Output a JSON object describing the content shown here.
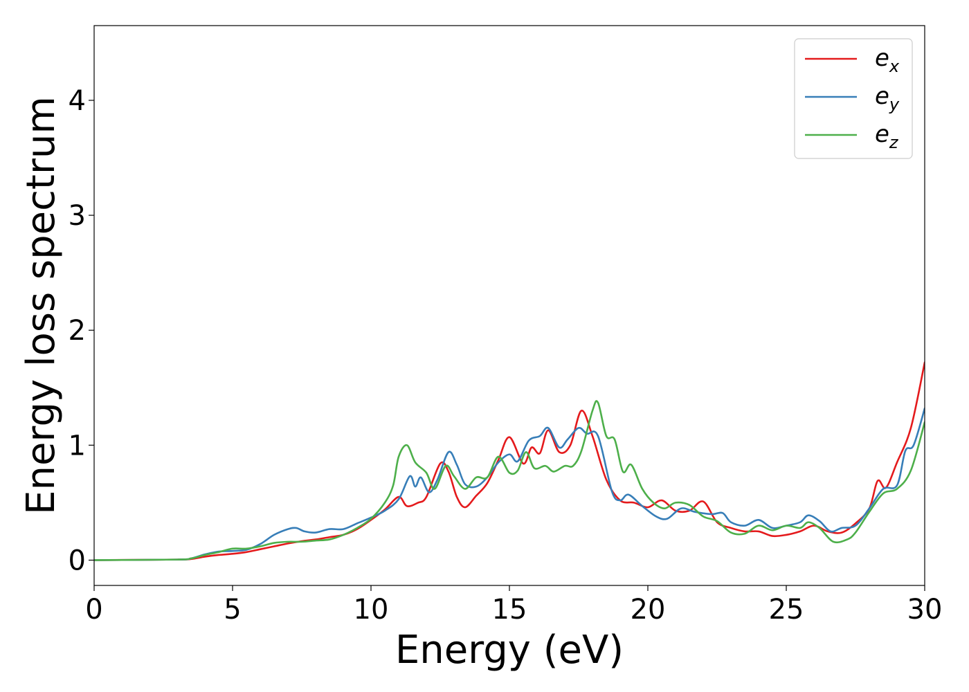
{
  "chart_data": {
    "type": "line",
    "title": "",
    "xlabel": "Energy (eV)",
    "ylabel": "Energy loss spectrum",
    "xlim": [
      0,
      30
    ],
    "ylim": [
      -0.22,
      4.65
    ],
    "xticks": [
      0,
      5,
      10,
      15,
      20,
      25,
      30
    ],
    "yticks": [
      0,
      1,
      2,
      3,
      4
    ],
    "grid": false,
    "legend_position": "top-right",
    "series": [
      {
        "name": "e_x",
        "label_base": "e",
        "label_sub": "x",
        "color": "#e41a1c",
        "points": [
          [
            0,
            0
          ],
          [
            3,
            0.005
          ],
          [
            3.5,
            0.01
          ],
          [
            4,
            0.03
          ],
          [
            4.5,
            0.045
          ],
          [
            5,
            0.055
          ],
          [
            5.5,
            0.07
          ],
          [
            6,
            0.095
          ],
          [
            6.5,
            0.12
          ],
          [
            7,
            0.145
          ],
          [
            7.5,
            0.165
          ],
          [
            8,
            0.18
          ],
          [
            8.5,
            0.2
          ],
          [
            9,
            0.22
          ],
          [
            9.5,
            0.27
          ],
          [
            10,
            0.35
          ],
          [
            10.5,
            0.44
          ],
          [
            11,
            0.55
          ],
          [
            11.3,
            0.47
          ],
          [
            11.7,
            0.5
          ],
          [
            12,
            0.55
          ],
          [
            12.5,
            0.84
          ],
          [
            12.8,
            0.77
          ],
          [
            13.1,
            0.55
          ],
          [
            13.4,
            0.46
          ],
          [
            13.8,
            0.56
          ],
          [
            14.2,
            0.67
          ],
          [
            14.6,
            0.87
          ],
          [
            15,
            1.07
          ],
          [
            15.5,
            0.84
          ],
          [
            15.8,
            0.98
          ],
          [
            16.1,
            0.93
          ],
          [
            16.4,
            1.13
          ],
          [
            16.8,
            0.94
          ],
          [
            17.2,
            1.0
          ],
          [
            17.6,
            1.3
          ],
          [
            18,
            1.08
          ],
          [
            18.5,
            0.7
          ],
          [
            19,
            0.52
          ],
          [
            19.5,
            0.5
          ],
          [
            20,
            0.46
          ],
          [
            20.5,
            0.52
          ],
          [
            21,
            0.43
          ],
          [
            21.5,
            0.43
          ],
          [
            22,
            0.51
          ],
          [
            22.5,
            0.33
          ],
          [
            23,
            0.28
          ],
          [
            23.5,
            0.25
          ],
          [
            24,
            0.25
          ],
          [
            24.5,
            0.21
          ],
          [
            25,
            0.22
          ],
          [
            25.5,
            0.25
          ],
          [
            26,
            0.3
          ],
          [
            26.5,
            0.25
          ],
          [
            27,
            0.24
          ],
          [
            27.5,
            0.32
          ],
          [
            28,
            0.45
          ],
          [
            28.3,
            0.69
          ],
          [
            28.6,
            0.63
          ],
          [
            29,
            0.85
          ],
          [
            29.5,
            1.15
          ],
          [
            30,
            1.72
          ]
        ]
      },
      {
        "name": "e_y",
        "label_base": "e",
        "label_sub": "y",
        "color": "#377eb8",
        "points": [
          [
            0,
            0
          ],
          [
            3,
            0.005
          ],
          [
            3.5,
            0.015
          ],
          [
            4,
            0.05
          ],
          [
            4.5,
            0.075
          ],
          [
            5,
            0.08
          ],
          [
            5.5,
            0.09
          ],
          [
            6,
            0.14
          ],
          [
            6.5,
            0.22
          ],
          [
            7,
            0.27
          ],
          [
            7.3,
            0.28
          ],
          [
            7.6,
            0.25
          ],
          [
            8,
            0.24
          ],
          [
            8.5,
            0.27
          ],
          [
            9,
            0.27
          ],
          [
            9.5,
            0.32
          ],
          [
            10,
            0.37
          ],
          [
            10.5,
            0.43
          ],
          [
            11,
            0.53
          ],
          [
            11.4,
            0.73
          ],
          [
            11.6,
            0.64
          ],
          [
            11.8,
            0.72
          ],
          [
            12.1,
            0.59
          ],
          [
            12.4,
            0.7
          ],
          [
            12.8,
            0.94
          ],
          [
            13.1,
            0.83
          ],
          [
            13.4,
            0.66
          ],
          [
            13.8,
            0.64
          ],
          [
            14.2,
            0.72
          ],
          [
            14.6,
            0.85
          ],
          [
            15,
            0.92
          ],
          [
            15.3,
            0.86
          ],
          [
            15.7,
            1.04
          ],
          [
            16.1,
            1.08
          ],
          [
            16.4,
            1.15
          ],
          [
            16.8,
            0.98
          ],
          [
            17.1,
            1.05
          ],
          [
            17.5,
            1.15
          ],
          [
            17.8,
            1.1
          ],
          [
            18.2,
            1.08
          ],
          [
            18.7,
            0.6
          ],
          [
            19,
            0.52
          ],
          [
            19.3,
            0.57
          ],
          [
            19.8,
            0.47
          ],
          [
            20.3,
            0.38
          ],
          [
            20.7,
            0.36
          ],
          [
            21.2,
            0.45
          ],
          [
            21.7,
            0.42
          ],
          [
            22.3,
            0.4
          ],
          [
            22.7,
            0.41
          ],
          [
            23,
            0.33
          ],
          [
            23.5,
            0.3
          ],
          [
            24,
            0.35
          ],
          [
            24.5,
            0.28
          ],
          [
            25,
            0.3
          ],
          [
            25.5,
            0.33
          ],
          [
            25.8,
            0.39
          ],
          [
            26.2,
            0.34
          ],
          [
            26.6,
            0.25
          ],
          [
            27,
            0.28
          ],
          [
            27.5,
            0.3
          ],
          [
            28,
            0.45
          ],
          [
            28.5,
            0.62
          ],
          [
            29,
            0.65
          ],
          [
            29.3,
            0.95
          ],
          [
            29.6,
            1.0
          ],
          [
            30,
            1.32
          ]
        ]
      },
      {
        "name": "e_z",
        "label_base": "e",
        "label_sub": "z",
        "color": "#4daf4a",
        "points": [
          [
            0,
            0
          ],
          [
            3,
            0.005
          ],
          [
            3.5,
            0.015
          ],
          [
            4,
            0.045
          ],
          [
            4.5,
            0.07
          ],
          [
            5,
            0.1
          ],
          [
            5.5,
            0.1
          ],
          [
            6,
            0.12
          ],
          [
            6.5,
            0.15
          ],
          [
            7,
            0.16
          ],
          [
            7.5,
            0.16
          ],
          [
            8,
            0.17
          ],
          [
            8.5,
            0.18
          ],
          [
            9,
            0.22
          ],
          [
            9.5,
            0.28
          ],
          [
            10,
            0.36
          ],
          [
            10.5,
            0.5
          ],
          [
            10.8,
            0.65
          ],
          [
            11,
            0.9
          ],
          [
            11.3,
            1.0
          ],
          [
            11.6,
            0.85
          ],
          [
            12,
            0.76
          ],
          [
            12.3,
            0.62
          ],
          [
            12.7,
            0.82
          ],
          [
            13,
            0.73
          ],
          [
            13.4,
            0.62
          ],
          [
            13.8,
            0.72
          ],
          [
            14.2,
            0.72
          ],
          [
            14.6,
            0.9
          ],
          [
            15,
            0.76
          ],
          [
            15.3,
            0.78
          ],
          [
            15.6,
            0.94
          ],
          [
            15.9,
            0.8
          ],
          [
            16.3,
            0.82
          ],
          [
            16.6,
            0.77
          ],
          [
            17,
            0.82
          ],
          [
            17.3,
            0.82
          ],
          [
            17.6,
            0.95
          ],
          [
            18,
            1.3
          ],
          [
            18.2,
            1.37
          ],
          [
            18.5,
            1.08
          ],
          [
            18.8,
            1.05
          ],
          [
            19.1,
            0.77
          ],
          [
            19.4,
            0.83
          ],
          [
            19.8,
            0.62
          ],
          [
            20.2,
            0.5
          ],
          [
            20.6,
            0.45
          ],
          [
            21,
            0.5
          ],
          [
            21.5,
            0.48
          ],
          [
            22,
            0.38
          ],
          [
            22.5,
            0.34
          ],
          [
            23,
            0.24
          ],
          [
            23.5,
            0.23
          ],
          [
            24,
            0.3
          ],
          [
            24.5,
            0.26
          ],
          [
            25,
            0.3
          ],
          [
            25.5,
            0.28
          ],
          [
            25.8,
            0.33
          ],
          [
            26.2,
            0.28
          ],
          [
            26.7,
            0.16
          ],
          [
            27.2,
            0.18
          ],
          [
            27.5,
            0.24
          ],
          [
            28,
            0.42
          ],
          [
            28.5,
            0.58
          ],
          [
            29,
            0.62
          ],
          [
            29.5,
            0.78
          ],
          [
            30,
            1.2
          ]
        ]
      }
    ]
  }
}
